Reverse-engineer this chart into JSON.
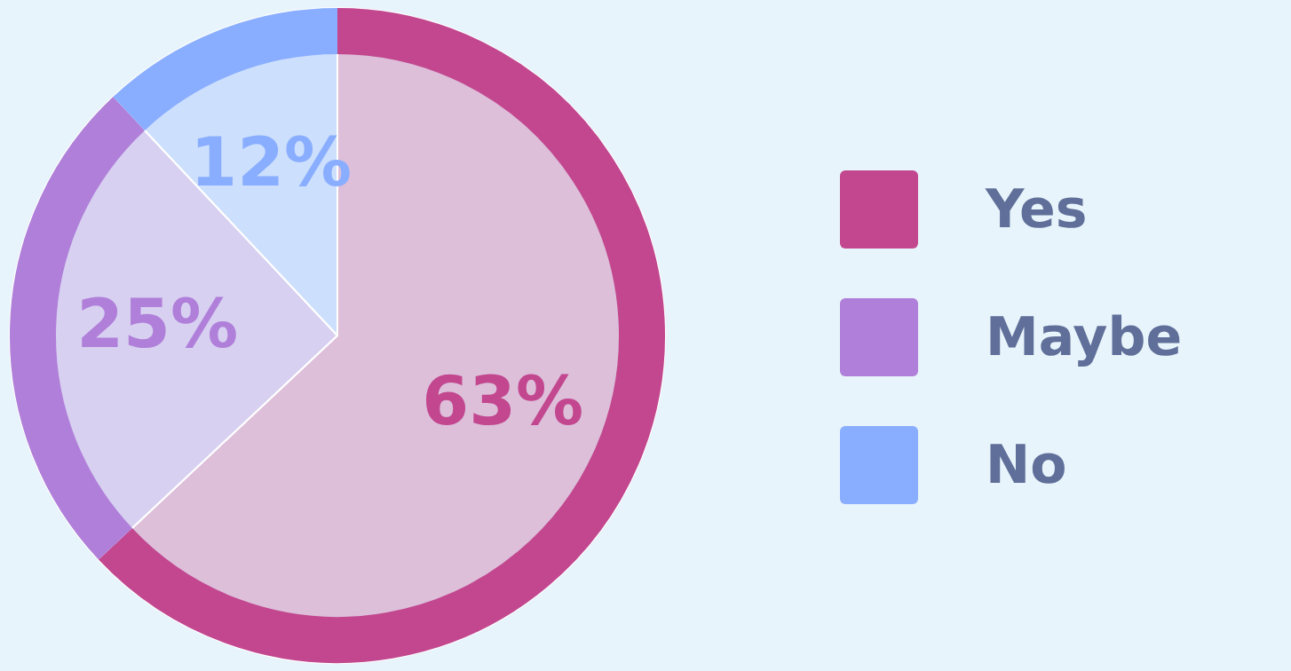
{
  "chart_data": {
    "type": "pie",
    "categories": [
      "Yes",
      "Maybe",
      "No"
    ],
    "values": [
      63,
      25,
      12
    ],
    "colors": [
      "#c2478f",
      "#b07fd9",
      "#8aaeff"
    ],
    "value_labels": [
      "63%",
      "25%",
      "12%"
    ],
    "legend": "right"
  }
}
